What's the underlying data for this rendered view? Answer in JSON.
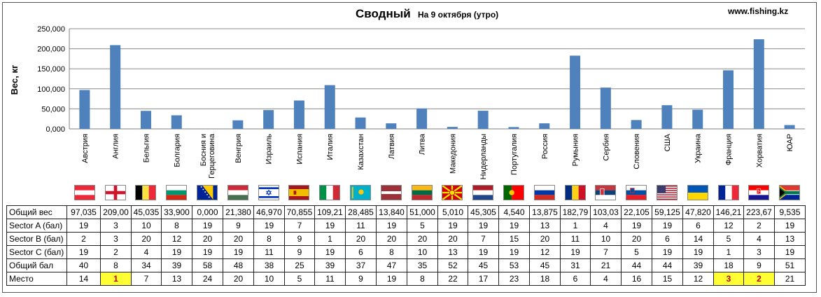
{
  "header": {
    "title": "Сводный",
    "subtitle": "На 9 октября (утро)",
    "site": "www.fishing.kz"
  },
  "chart_data": {
    "type": "bar",
    "ylabel": "Вес, кг",
    "xlabel": "",
    "ylim": [
      0,
      250000
    ],
    "yticks": [
      0,
      50000,
      100000,
      150000,
      200000,
      250000
    ],
    "ytick_labels": [
      "0,000",
      "50,000",
      "100,000",
      "150,000",
      "200,000",
      "250,000"
    ],
    "grid": true,
    "bar_color": "#4f81bd",
    "categories": [
      "Австрия",
      "Англия",
      "Бельгия",
      "Болгария",
      "Босния и Герцеговина",
      "Венгрия",
      "Израиль",
      "Испания",
      "Италия",
      "Казахстан",
      "Латвия",
      "Литва",
      "Македония",
      "Нидерланды",
      "Португалия",
      "Россия",
      "Румыния",
      "Сербия",
      "Словения",
      "США",
      "Украина",
      "Франция",
      "Хорватия",
      "ЮАР"
    ],
    "values": [
      97035,
      209000,
      45035,
      33900,
      0,
      21380,
      46970,
      70855,
      109210,
      28485,
      13840,
      51000,
      5010,
      45305,
      4540,
      13875,
      182790,
      103030,
      22105,
      59125,
      47820,
      146210,
      223670,
      9535
    ]
  },
  "flags": [
    "austria-flag-icon",
    "england-flag-icon",
    "belgium-flag-icon",
    "bulgaria-flag-icon",
    "bosnia-flag-icon",
    "hungary-flag-icon",
    "israel-flag-icon",
    "spain-flag-icon",
    "italy-flag-icon",
    "kazakhstan-flag-icon",
    "latvia-flag-icon",
    "lithuania-flag-icon",
    "macedonia-flag-icon",
    "netherlands-flag-icon",
    "portugal-flag-icon",
    "russia-flag-icon",
    "romania-flag-icon",
    "serbia-flag-icon",
    "slovenia-flag-icon",
    "usa-flag-icon",
    "ukraine-flag-icon",
    "france-flag-icon",
    "croatia-flag-icon",
    "south-africa-flag-icon"
  ],
  "table": {
    "highlight_color": "#ffff33",
    "rows": [
      {
        "label": "Общий вес",
        "cells": [
          "97,035",
          "209,00",
          "45,035",
          "33,900",
          "0,000",
          "21,380",
          "46,970",
          "70,855",
          "109,21",
          "28,485",
          "13,840",
          "51,000",
          "5,010",
          "45,305",
          "4,540",
          "13,875",
          "182,79",
          "103,03",
          "22,105",
          "59,125",
          "47,820",
          "146,21",
          "223,67",
          "9,535"
        ]
      },
      {
        "label": "Sector A (бал)",
        "cells": [
          "19",
          "3",
          "10",
          "8",
          "19",
          "9",
          "19",
          "7",
          "19",
          "11",
          "19",
          "5",
          "19",
          "19",
          "19",
          "13",
          "1",
          "4",
          "19",
          "19",
          "6",
          "12",
          "2",
          "19"
        ]
      },
      {
        "label": "Sector B (бал)",
        "cells": [
          "2",
          "3",
          "20",
          "12",
          "20",
          "20",
          "8",
          "9",
          "1",
          "20",
          "20",
          "20",
          "20",
          "7",
          "15",
          "20",
          "11",
          "10",
          "20",
          "6",
          "14",
          "5",
          "4",
          "13"
        ]
      },
      {
        "label": "Sector C (бал)",
        "cells": [
          "19",
          "2",
          "4",
          "19",
          "19",
          "19",
          "11",
          "9",
          "19",
          "6",
          "8",
          "10",
          "13",
          "19",
          "19",
          "12",
          "19",
          "7",
          "5",
          "19",
          "19",
          "1",
          "3",
          "19"
        ]
      },
      {
        "label": "Общий бал",
        "cells": [
          "40",
          "8",
          "34",
          "39",
          "58",
          "48",
          "38",
          "25",
          "39",
          "37",
          "47",
          "35",
          "52",
          "45",
          "53",
          "45",
          "31",
          "21",
          "44",
          "44",
          "39",
          "18",
          "9",
          "51"
        ]
      },
      {
        "label": "Место",
        "cells": [
          "14",
          "1",
          "7",
          "13",
          "24",
          "20",
          "10",
          "5",
          "11",
          "9",
          "19",
          "8",
          "22",
          "17",
          "23",
          "18",
          "6",
          "4",
          "16",
          "15",
          "12",
          "3",
          "2",
          "21"
        ],
        "highlight": [
          1,
          21,
          22
        ]
      }
    ]
  }
}
